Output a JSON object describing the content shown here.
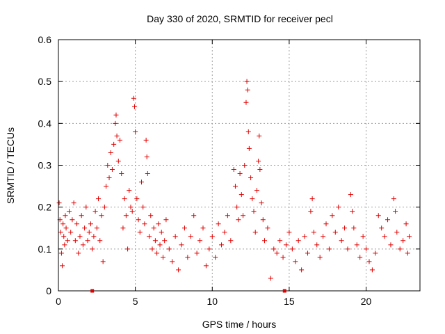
{
  "chart_data": {
    "type": "scatter",
    "title": "Day 330 of 2020, SRMTID for receiver pecl",
    "xlabel": "GPS time / hours",
    "ylabel": "SRMTID / TECUs",
    "xlim": [
      0,
      23.5
    ],
    "ylim": [
      0,
      0.6
    ],
    "x_ticks": [
      0,
      5,
      10,
      15,
      20
    ],
    "y_ticks": [
      0,
      0.1,
      0.2,
      0.3,
      0.4,
      0.5,
      0.6
    ],
    "x_tick_labels": [
      "0",
      "5",
      "10",
      "15",
      "20"
    ],
    "y_tick_labels": [
      "0",
      "0.1",
      "0.2",
      "0.3",
      "0.4",
      "0.5",
      "0.6"
    ],
    "grid": true,
    "marker": "+",
    "series": [
      {
        "name": "SRMTID",
        "color": "#e00000",
        "points": [
          [
            0.05,
            0.21
          ],
          [
            0.1,
            0.17
          ],
          [
            0.15,
            0.14
          ],
          [
            0.2,
            0.09
          ],
          [
            0.25,
            0.06
          ],
          [
            0.3,
            0.16
          ],
          [
            0.35,
            0.13
          ],
          [
            0.4,
            0.11
          ],
          [
            0.45,
            0.18
          ],
          [
            0.5,
            0.15
          ],
          [
            0.6,
            0.12
          ],
          [
            0.7,
            0.19
          ],
          [
            0.8,
            0.14
          ],
          [
            0.9,
            0.17
          ],
          [
            1.0,
            0.21
          ],
          [
            1.1,
            0.12
          ],
          [
            1.2,
            0.16
          ],
          [
            1.3,
            0.09
          ],
          [
            1.4,
            0.13
          ],
          [
            1.5,
            0.18
          ],
          [
            1.6,
            0.11
          ],
          [
            1.7,
            0.15
          ],
          [
            1.8,
            0.2
          ],
          [
            1.9,
            0.12
          ],
          [
            2.0,
            0.14
          ],
          [
            2.1,
            0.16
          ],
          [
            2.2,
            0.1
          ],
          [
            2.3,
            0.13
          ],
          [
            2.4,
            0.19
          ],
          [
            2.5,
            0.15
          ],
          [
            2.6,
            0.22
          ],
          [
            2.7,
            0.12
          ],
          [
            2.8,
            0.18
          ],
          [
            2.9,
            0.07
          ],
          [
            3.0,
            0.2
          ],
          [
            3.1,
            0.25
          ],
          [
            3.2,
            0.3
          ],
          [
            3.3,
            0.27
          ],
          [
            3.4,
            0.33
          ],
          [
            3.5,
            0.29
          ],
          [
            3.6,
            0.35
          ],
          [
            3.7,
            0.4
          ],
          [
            3.75,
            0.42
          ],
          [
            3.8,
            0.37
          ],
          [
            3.9,
            0.31
          ],
          [
            4.0,
            0.36
          ],
          [
            4.1,
            0.28
          ],
          [
            4.2,
            0.15
          ],
          [
            4.3,
            0.22
          ],
          [
            4.4,
            0.18
          ],
          [
            4.5,
            0.1
          ],
          [
            4.6,
            0.24
          ],
          [
            4.7,
            0.2
          ],
          [
            4.8,
            0.19
          ],
          [
            4.9,
            0.46
          ],
          [
            4.95,
            0.44
          ],
          [
            5.0,
            0.38
          ],
          [
            5.1,
            0.22
          ],
          [
            5.2,
            0.17
          ],
          [
            5.3,
            0.14
          ],
          [
            5.4,
            0.26
          ],
          [
            5.5,
            0.2
          ],
          [
            5.6,
            0.16
          ],
          [
            5.7,
            0.36
          ],
          [
            5.75,
            0.32
          ],
          [
            5.8,
            0.28
          ],
          [
            5.9,
            0.13
          ],
          [
            6.0,
            0.18
          ],
          [
            6.1,
            0.1
          ],
          [
            6.2,
            0.15
          ],
          [
            6.3,
            0.12
          ],
          [
            6.4,
            0.09
          ],
          [
            6.5,
            0.16
          ],
          [
            6.6,
            0.11
          ],
          [
            6.7,
            0.14
          ],
          [
            6.8,
            0.08
          ],
          [
            6.9,
            0.12
          ],
          [
            7.0,
            0.17
          ],
          [
            7.2,
            0.1
          ],
          [
            7.4,
            0.07
          ],
          [
            7.6,
            0.13
          ],
          [
            7.8,
            0.05
          ],
          [
            8.0,
            0.11
          ],
          [
            8.2,
            0.15
          ],
          [
            8.4,
            0.08
          ],
          [
            8.6,
            0.13
          ],
          [
            8.8,
            0.18
          ],
          [
            9.0,
            0.09
          ],
          [
            9.2,
            0.12
          ],
          [
            9.4,
            0.15
          ],
          [
            9.6,
            0.06
          ],
          [
            9.8,
            0.1
          ],
          [
            10.0,
            0.13
          ],
          [
            10.2,
            0.08
          ],
          [
            10.4,
            0.16
          ],
          [
            10.6,
            0.11
          ],
          [
            10.8,
            0.14
          ],
          [
            11.0,
            0.18
          ],
          [
            11.2,
            0.12
          ],
          [
            11.4,
            0.29
          ],
          [
            11.5,
            0.25
          ],
          [
            11.6,
            0.2
          ],
          [
            11.7,
            0.17
          ],
          [
            11.8,
            0.28
          ],
          [
            11.9,
            0.23
          ],
          [
            12.0,
            0.18
          ],
          [
            12.1,
            0.3
          ],
          [
            12.2,
            0.45
          ],
          [
            12.25,
            0.5
          ],
          [
            12.3,
            0.48
          ],
          [
            12.35,
            0.38
          ],
          [
            12.4,
            0.34
          ],
          [
            12.5,
            0.27
          ],
          [
            12.6,
            0.22
          ],
          [
            12.7,
            0.19
          ],
          [
            12.8,
            0.14
          ],
          [
            12.9,
            0.24
          ],
          [
            13.0,
            0.31
          ],
          [
            13.05,
            0.37
          ],
          [
            13.1,
            0.29
          ],
          [
            13.2,
            0.21
          ],
          [
            13.3,
            0.17
          ],
          [
            13.4,
            0.12
          ],
          [
            13.6,
            0.15
          ],
          [
            13.8,
            0.03
          ],
          [
            14.0,
            0.1
          ],
          [
            14.2,
            0.09
          ],
          [
            14.4,
            0.12
          ],
          [
            14.6,
            0.08
          ],
          [
            14.8,
            0.11
          ],
          [
            15.0,
            0.14
          ],
          [
            15.2,
            0.1
          ],
          [
            15.4,
            0.07
          ],
          [
            15.6,
            0.12
          ],
          [
            15.8,
            0.05
          ],
          [
            16.0,
            0.13
          ],
          [
            16.2,
            0.09
          ],
          [
            16.4,
            0.19
          ],
          [
            16.5,
            0.22
          ],
          [
            16.6,
            0.14
          ],
          [
            16.8,
            0.11
          ],
          [
            17.0,
            0.08
          ],
          [
            17.2,
            0.13
          ],
          [
            17.4,
            0.16
          ],
          [
            17.6,
            0.1
          ],
          [
            17.8,
            0.18
          ],
          [
            18.0,
            0.14
          ],
          [
            18.2,
            0.2
          ],
          [
            18.4,
            0.12
          ],
          [
            18.6,
            0.15
          ],
          [
            18.8,
            0.1
          ],
          [
            19.0,
            0.23
          ],
          [
            19.1,
            0.19
          ],
          [
            19.2,
            0.15
          ],
          [
            19.4,
            0.11
          ],
          [
            19.6,
            0.08
          ],
          [
            19.8,
            0.13
          ],
          [
            20.0,
            0.1
          ],
          [
            20.2,
            0.07
          ],
          [
            20.4,
            0.05
          ],
          [
            20.6,
            0.09
          ],
          [
            20.8,
            0.18
          ],
          [
            21.0,
            0.15
          ],
          [
            21.2,
            0.13
          ],
          [
            21.4,
            0.17
          ],
          [
            21.6,
            0.11
          ],
          [
            21.8,
            0.22
          ],
          [
            21.9,
            0.19
          ],
          [
            22.0,
            0.14
          ],
          [
            22.2,
            0.1
          ],
          [
            22.4,
            0.12
          ],
          [
            22.6,
            0.16
          ],
          [
            22.7,
            0.09
          ],
          [
            22.8,
            0.13
          ]
        ]
      }
    ],
    "markers_on_x_axis": [
      2.2,
      14.7
    ]
  }
}
